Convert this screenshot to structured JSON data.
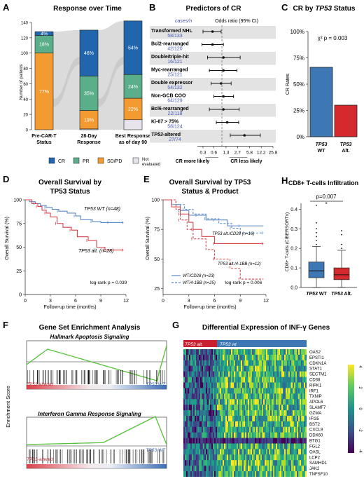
{
  "panels": {
    "A": {
      "letter": "A",
      "title": "Response over Time",
      "ylabel": "Number of patients",
      "yticks": [
        "0",
        "20",
        "40",
        "60",
        "80",
        "100",
        "120",
        "140"
      ],
      "columns": [
        {
          "l1": "Pre-CAR-T",
          "l2": "Status",
          "l3": ""
        },
        {
          "l1": "28-Day",
          "l2": "Response",
          "l3": ""
        },
        {
          "l1": "Best Response",
          "l2": "as of day 90",
          "l3": ""
        }
      ],
      "legend": [
        "CR",
        "PR",
        "SD/PD",
        "Not evaluated"
      ]
    },
    "B": {
      "letter": "B",
      "title": "Predictors of CR",
      "header_cases": "cases/n",
      "header_or": "Odds ratio (95% CI)",
      "xticks": [
        "0.3",
        "0.6",
        "1.3",
        "2.7",
        "5.8",
        "12.2",
        "25.8"
      ],
      "footer_left": "CR more likely",
      "footer_right": "CR less likely"
    },
    "C": {
      "letter": "C",
      "title_a": "CR by ",
      "title_b": "TP53",
      "title_c": " Status",
      "ylabel": "CR Rates",
      "yticks": [
        "0%",
        "25%",
        "50%",
        "75%",
        "100%"
      ],
      "annotation": "χ² p = 0.003",
      "bars": [
        {
          "l1": "TP53",
          "l2": "WT"
        },
        {
          "l1": "TP53",
          "l2": "Alt."
        }
      ]
    },
    "D": {
      "letter": "D",
      "title1": "Overall Survival by",
      "title2": "TP53 Status",
      "ylabel": "Overall Survival (%)",
      "xlabel": "Follow-up time (months)",
      "yticks": [
        "0",
        "25",
        "50",
        "75",
        "100"
      ],
      "xticks": [
        "0",
        "3",
        "6",
        "9",
        "12"
      ],
      "label_wt": "TP53 WT (n=48)",
      "label_alt": "TP53 alt. (n=28)",
      "pvalue": "log-rank p = 0.039"
    },
    "E": {
      "letter": "E",
      "title1": "Overall Survival by TP53",
      "title2": "Status & Product",
      "ylabel": "Overall Survival (%)",
      "xlabel": "Follow-up time (months)",
      "yticks": [
        "25",
        "50",
        "75",
        "100"
      ],
      "xticks": [
        "0",
        "3",
        "6",
        "9",
        "12"
      ],
      "label_cd28": "TP53 alt./CD28 (n=16)",
      "label_4bb": "TP53 alt./4-1BB (n=12)",
      "legend_cd28": "WT/CD28 (n=23)",
      "legend_4bb": "WT/4-1BB (n=25)",
      "pvalue": "log-rank p = 0.006"
    },
    "H": {
      "letter": "H",
      "title": "CD8+ T-cells Infiltration",
      "ylabel": "CD8+ T-cells (CIBERSORTx)",
      "yticks": [
        "0.0",
        "0.1",
        "0.2",
        "0.3",
        "0.4"
      ],
      "pvalue": "p=0.007",
      "star": "*",
      "groups": [
        {
          "a": "TP53",
          "b": " WT"
        },
        {
          "a": "TP53",
          "b": " Alt."
        }
      ]
    },
    "F": {
      "letter": "F",
      "title": "Gene Set Enrichment Analysis",
      "ylabel": "Enrichment Score",
      "sub1": "Hallmark Apoptosis Signaling",
      "sub2": "Interferon Gamma Response Signaling",
      "left": "TP53-altered",
      "right": "TP53 WT"
    },
    "G": {
      "letter": "G",
      "title": "Differential Expression of INF-γ Genes",
      "bar_alt": "TP53 alt.",
      "bar_wt": "TP53 wt",
      "genes": [
        "OAS2",
        "EPSTI1",
        "CDKN1A",
        "STAT1",
        "SECTM1",
        "CD38",
        "RIPK1",
        "IRF1",
        "TXNIP",
        "APOL6",
        "SLAMF7",
        "GZMA",
        "IFI35",
        "BST2",
        "CXCL9",
        "DDX60",
        "BTG1",
        "FGL2",
        "OASL",
        "LCP2",
        "SAMHD1",
        "JAK2",
        "TNFSF10"
      ],
      "scale": [
        "4",
        "2",
        "0",
        "-2",
        "-4"
      ]
    }
  },
  "chart_data": [
    {
      "type": "bar",
      "title": "Response over Time",
      "ylabel": "Number of patients",
      "ylim": [
        0,
        140
      ],
      "categories": [
        "Pre-CAR-T Status",
        "28-Day Response",
        "Best Response as of day 90"
      ],
      "series": [
        {
          "name": "CR",
          "values": [
            5,
            60,
            70
          ],
          "labels": [
            "4%",
            "46%",
            "54%"
          ],
          "color": "#2166ac"
        },
        {
          "name": "PR",
          "values": [
            23,
            45,
            31
          ],
          "labels": [
            "18%",
            "35%",
            "24%"
          ],
          "color": "#5aae89"
        },
        {
          "name": "SD/PD",
          "values": [
            100,
            24,
            28
          ],
          "labels": [
            "77%",
            "19%",
            "22%"
          ],
          "color": "#f39b30"
        },
        {
          "name": "Not evaluated",
          "values": [
            0,
            1,
            13
          ],
          "labels": [
            "",
            "",
            ""
          ],
          "color": "#e8e4ee"
        }
      ]
    },
    {
      "type": "scatter",
      "title": "Predictors of CR",
      "xlabel": "Odds ratio (95% CI)",
      "rows": [
        {
          "name": "Transformed NHL",
          "cases": "58/133",
          "or": 0.55,
          "lo": 0.3,
          "hi": 0.95
        },
        {
          "name": "Bcl2-rearranged",
          "cases": "42/120",
          "or": 0.55,
          "lo": 0.28,
          "hi": 1.1
        },
        {
          "name": "Double/triple-hit",
          "cases": "16/121",
          "or": 1.1,
          "lo": 0.4,
          "hi": 3.2
        },
        {
          "name": "Myc-rearranged",
          "cases": "25/121",
          "or": 1.1,
          "lo": 0.45,
          "hi": 2.6
        },
        {
          "name": "Double expressor",
          "cases": "54/132",
          "or": 0.95,
          "lo": 0.5,
          "hi": 1.8
        },
        {
          "name": "Non-GCB COO",
          "cases": "64/129",
          "or": 1.1,
          "lo": 0.6,
          "hi": 2.1
        },
        {
          "name": "Bcl6-rearranged",
          "cases": "22/118",
          "or": 1.1,
          "lo": 0.45,
          "hi": 3.0
        },
        {
          "name": "Ki-67 > 75%",
          "cases": "58/124",
          "or": 1.4,
          "lo": 0.7,
          "hi": 2.9
        },
        {
          "name": "TP53-altered",
          "cases": "27/74",
          "or": 4.2,
          "lo": 1.7,
          "hi": 11.5
        }
      ]
    },
    {
      "type": "bar",
      "title": "CR by TP53 Status",
      "ylabel": "CR Rates",
      "ylim": [
        0,
        1
      ],
      "categories": [
        "TP53 WT",
        "TP53 Alt."
      ],
      "values": [
        0.66,
        0.3
      ]
    },
    {
      "type": "line",
      "title": "Overall Survival by TP53 Status",
      "xlabel": "Follow-up time (months)",
      "ylabel": "Overall Survival (%)",
      "xlim": [
        0,
        12
      ],
      "ylim": [
        0,
        100
      ],
      "series": [
        {
          "name": "TP53 WT (n=48)",
          "x": [
            0,
            0.5,
            1.2,
            1.8,
            2.5,
            3.2,
            4,
            5,
            6,
            6.6,
            8,
            9,
            10,
            11,
            11.7
          ],
          "y": [
            100,
            98,
            96,
            94,
            92,
            90,
            88,
            86,
            83,
            79,
            77,
            76,
            76,
            76,
            76
          ]
        },
        {
          "name": "TP53 alt. (n=28)",
          "x": [
            0,
            0.8,
            1.5,
            2,
            2.5,
            3,
            3.8,
            4.5,
            5.5,
            6.2,
            7.5,
            8.5,
            9.5,
            10.5,
            11.7
          ],
          "y": [
            100,
            96,
            93,
            89,
            86,
            82,
            75,
            71,
            68,
            61,
            57,
            50,
            47,
            47,
            47
          ]
        }
      ]
    },
    {
      "type": "line",
      "title": "Overall Survival by TP53 Status & Product",
      "xlabel": "Follow-up time (months)",
      "ylabel": "Overall Survival (%)",
      "xlim": [
        0,
        12
      ],
      "ylim": [
        25,
        100
      ],
      "series": [
        {
          "name": "WT/CD28 (n=23)",
          "x": [
            0,
            1,
            2,
            3,
            4,
            5,
            6,
            7.5,
            9,
            11.7
          ],
          "y": [
            100,
            96,
            91,
            87,
            87,
            83,
            83,
            78,
            78,
            78
          ]
        },
        {
          "name": "WT/4-1BB (n=25)",
          "x": [
            0,
            1.5,
            2.5,
            3.5,
            5,
            6.5,
            8,
            9,
            11.7
          ],
          "y": [
            100,
            96,
            92,
            88,
            84,
            80,
            76,
            72,
            72
          ]
        },
        {
          "name": "TP53 alt./CD28 (n=16)",
          "x": [
            0,
            1,
            2,
            3,
            3.5,
            4.5,
            6,
            9,
            11.7
          ],
          "y": [
            100,
            94,
            88,
            81,
            75,
            69,
            63,
            63,
            63
          ]
        },
        {
          "name": "TP53 alt./4-1BB (n=12)",
          "x": [
            0,
            1.5,
            2,
            2.8,
            3.5,
            5,
            6,
            7.8,
            9,
            11.7
          ],
          "y": [
            100,
            92,
            83,
            75,
            67,
            58,
            50,
            42,
            33,
            33
          ]
        }
      ]
    },
    {
      "type": "bar",
      "title": "CD8+ T-cells Infiltration",
      "ylabel": "CD8+ T-cells (CIBERSORTx)",
      "ylim": [
        0,
        0.43
      ],
      "categories": [
        "TP53 WT",
        "TP53 Alt."
      ],
      "series": [
        {
          "name": "TP53 WT",
          "q1": 0.05,
          "median": 0.085,
          "q3": 0.13,
          "min": 0.0,
          "max": 0.21
        },
        {
          "name": "TP53 Alt.",
          "q1": 0.04,
          "median": 0.065,
          "q3": 0.1,
          "min": 0.0,
          "max": 0.19
        }
      ]
    }
  ]
}
